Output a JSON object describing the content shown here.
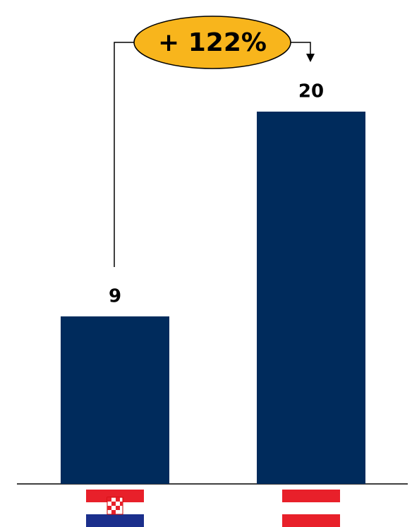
{
  "chart_data": {
    "type": "bar",
    "annotation": "+ 122%",
    "categories": [
      null,
      null
    ],
    "values": [
      9,
      20
    ],
    "color": "#002b5c"
  }
}
